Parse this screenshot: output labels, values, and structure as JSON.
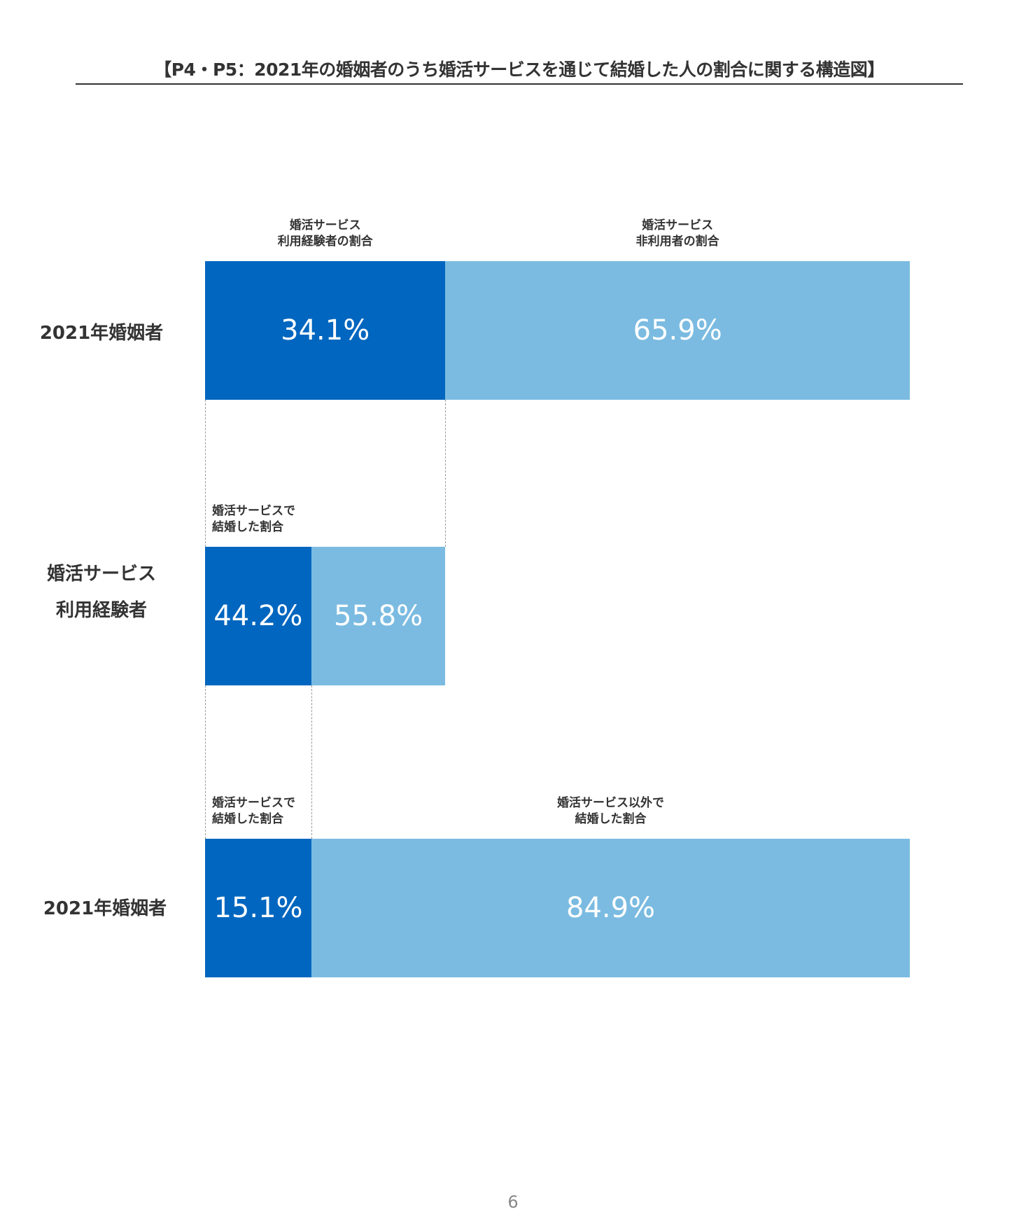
{
  "title": "【P4・P5：2021年の婚姻者のうち婚活サービスを通じて結婚した人の割合に関する構造図】",
  "page_number": "6",
  "colors": {
    "dark": "#0066bf",
    "light": "#7bbbe1"
  },
  "chart_data": [
    {
      "type": "bar",
      "stacked": true,
      "orientation": "horizontal",
      "row_label": [
        "2021年婚姻者"
      ],
      "segments": [
        {
          "caption": [
            "婚活サービス",
            "利用経験者の割合"
          ],
          "value": 34.1,
          "label": "34.1%"
        },
        {
          "caption": [
            "婚活サービス",
            "非利用者の割合"
          ],
          "value": 65.9,
          "label": "65.9%"
        }
      ]
    },
    {
      "type": "bar",
      "stacked": true,
      "orientation": "horizontal",
      "row_label": [
        "婚活サービス",
        "利用経験者"
      ],
      "segments": [
        {
          "caption": [
            "婚活サービスで",
            "結婚した割合"
          ],
          "value": 44.2,
          "label": "44.2%"
        },
        {
          "caption": [
            "",
            ""
          ],
          "value": 55.8,
          "label": "55.8%"
        }
      ]
    },
    {
      "type": "bar",
      "stacked": true,
      "orientation": "horizontal",
      "row_label": [
        "2021年婚姻者"
      ],
      "segments": [
        {
          "caption": [
            "婚活サービスで",
            "結婚した割合"
          ],
          "value": 15.1,
          "label": "15.1%"
        },
        {
          "caption": [
            "婚活サービス以外で",
            "結婚した割合"
          ],
          "value": 84.9,
          "label": "84.9%"
        }
      ]
    }
  ]
}
